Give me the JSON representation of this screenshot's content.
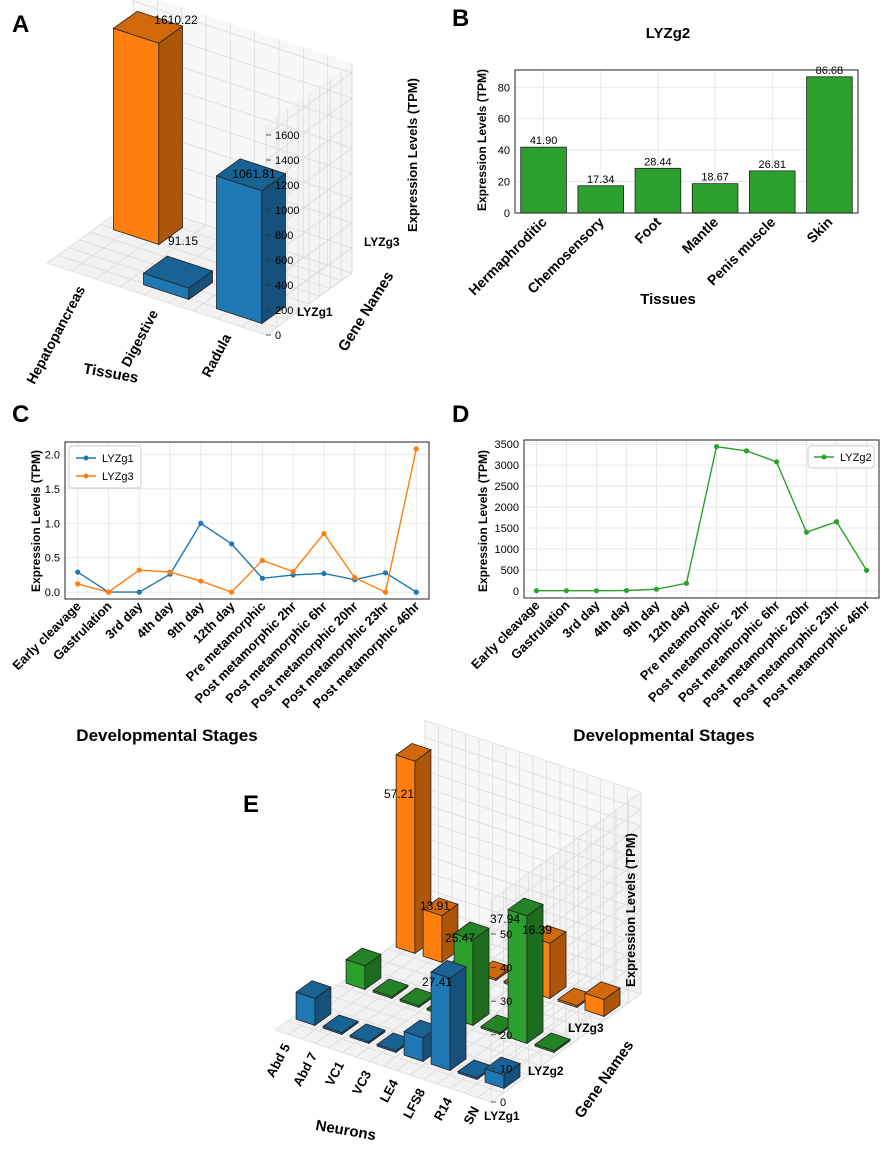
{
  "panel_labels": {
    "a": "A",
    "b": "B",
    "c": "C",
    "d": "D",
    "e": "E"
  },
  "colors": {
    "LYZg1": "#1f77b4",
    "LYZg2": "#2ca02c",
    "LYZg3": "#ff7f0e"
  },
  "chart_data": [
    {
      "id": "A",
      "type": "bar3d",
      "title": "",
      "xlabel": "Tissues",
      "ylabel": "Gene Names",
      "zlabel": "Expression Levels (TPM)",
      "categories": [
        "Hepatopancreas",
        "Digestive",
        "Radula"
      ],
      "genes": [
        "LYZg1",
        "LYZg3"
      ],
      "series": [
        {
          "name": "LYZg1",
          "values": [
            0,
            91.15,
            1061.81
          ]
        },
        {
          "name": "LYZg3",
          "values": [
            1610.22,
            0,
            0
          ]
        }
      ],
      "value_labels": [
        "1610.22",
        "1061.81",
        "91.15"
      ],
      "zticks": [
        "0",
        "200",
        "400",
        "600",
        "800",
        "1000",
        "1200",
        "1400",
        "1600"
      ]
    },
    {
      "id": "B",
      "type": "bar",
      "title": "LYZg2",
      "xlabel": "Tissues",
      "ylabel": "Expression Levels (TPM)",
      "categories": [
        "Hermaphroditic",
        "Chemosensory",
        "Foot",
        "Mantle",
        "Penis muscle",
        "Skin"
      ],
      "values": [
        41.9,
        17.34,
        28.44,
        18.67,
        26.81,
        86.68
      ],
      "value_labels": [
        "41.90",
        "17.34",
        "28.44",
        "18.67",
        "26.81",
        "86.68"
      ],
      "ylim": [
        0,
        91
      ],
      "yticks": [
        0,
        20,
        40,
        60,
        80
      ]
    },
    {
      "id": "C",
      "type": "line",
      "xlabel": "Developmental Stages",
      "ylabel": "Expression Levels (TPM)",
      "categories": [
        "Early cleavage",
        "Gastrulation",
        "3rd day",
        "4th day",
        "9th day",
        "12th day",
        "Pre metamorphic",
        "Post metamorphic 2hr",
        "Post metamorphic 6hr",
        "Post metamorphic 20hr",
        "Post metamorphic 23hr",
        "Post metamorphic 46hr"
      ],
      "series": [
        {
          "name": "LYZg1",
          "values": [
            0.29,
            0.0,
            0.0,
            0.26,
            1.0,
            0.7,
            0.2,
            0.25,
            0.27,
            0.18,
            0.28,
            0.0
          ]
        },
        {
          "name": "LYZg3",
          "values": [
            0.12,
            0.0,
            0.32,
            0.29,
            0.16,
            0.0,
            0.46,
            0.3,
            0.85,
            0.21,
            0.0,
            2.08
          ]
        }
      ],
      "ylim": [
        -0.1,
        2.18
      ],
      "yticks": [
        "0.0",
        "0.5",
        "1.0",
        "1.5",
        "2.0"
      ],
      "legend": "top-left"
    },
    {
      "id": "D",
      "type": "line",
      "xlabel": "Developmental Stages",
      "ylabel": "Expression Levels (TPM)",
      "categories": [
        "Early cleavage",
        "Gastrulation",
        "3rd day",
        "4th day",
        "9th day",
        "12th day",
        "Pre metamorphic",
        "Post metamorphic 2hr",
        "Post metamorphic 6hr",
        "Post metamorphic 20hr",
        "Post metamorphic 23hr",
        "Post metamorphic 46hr"
      ],
      "series": [
        {
          "name": "LYZg2",
          "values": [
            5,
            5,
            5,
            10,
            40,
            180,
            3440,
            3340,
            3080,
            1400,
            1650,
            490
          ]
        }
      ],
      "ylim": [
        -170,
        3600
      ],
      "yticks": [
        "0",
        "500",
        "1000",
        "1500",
        "2000",
        "2500",
        "3000",
        "3500"
      ],
      "legend": "top-right"
    },
    {
      "id": "E",
      "type": "bar3d",
      "xlabel": "Neurons",
      "ylabel": "Gene Names",
      "zlabel": "Expression Levels (TPM)",
      "categories": [
        "Abd 5",
        "Abd 7",
        "VC1",
        "VC3",
        "LE4",
        "LFS8",
        "R14",
        "SN"
      ],
      "genes": [
        "LYZg1",
        "LYZg2",
        "LYZg3"
      ],
      "series": [
        {
          "name": "LYZg1",
          "values": [
            8,
            0.5,
            0.5,
            0.5,
            7,
            27.41,
            0.5,
            4
          ]
        },
        {
          "name": "LYZg2",
          "values": [
            7,
            0.5,
            0.5,
            0.5,
            25.47,
            0.5,
            37.94,
            0.5
          ]
        },
        {
          "name": "LYZg3",
          "values": [
            57.21,
            13.91,
            0.5,
            0.5,
            0.5,
            16.39,
            0.5,
            5
          ]
        }
      ],
      "value_labels": [
        "57.21",
        "13.91",
        "25.47",
        "37.94",
        "16.39",
        "27.41"
      ],
      "zticks": [
        "0",
        "10",
        "20",
        "30",
        "40",
        "50"
      ]
    }
  ]
}
